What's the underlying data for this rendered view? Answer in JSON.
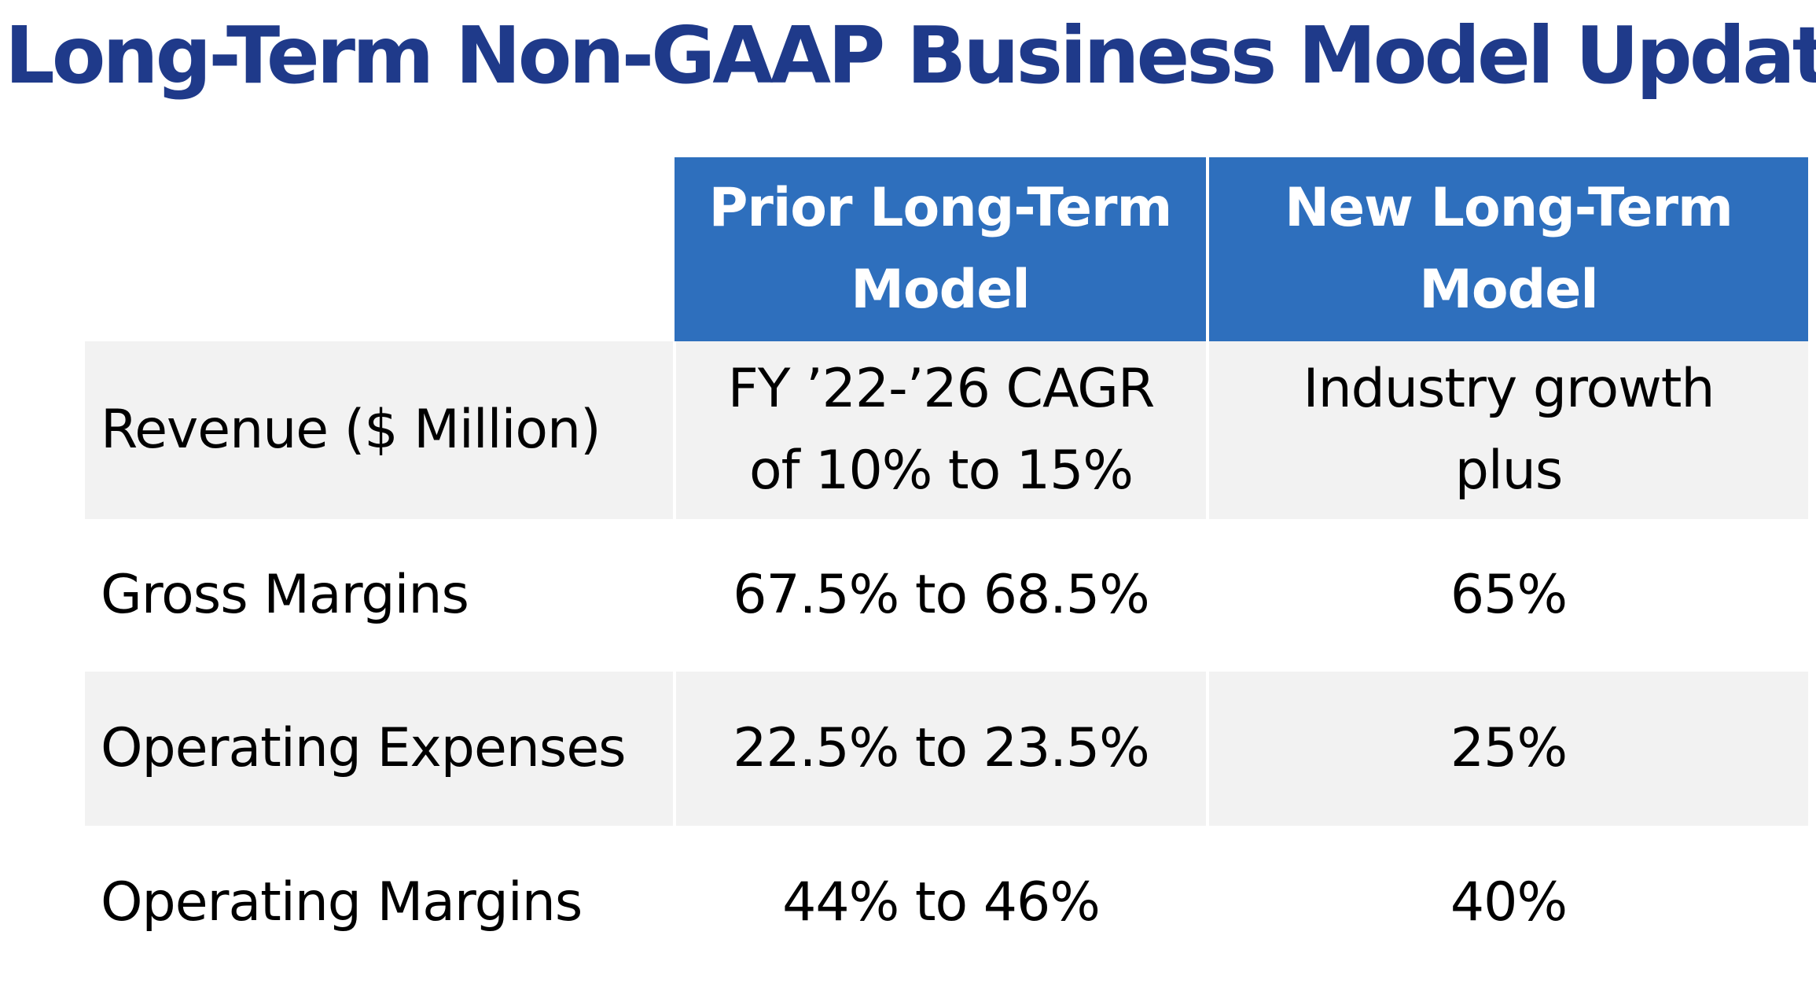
{
  "slide": {
    "title": "Long-Term Non-GAAP Business Model Update"
  },
  "table": {
    "headers": {
      "prior": "Prior Long-Term\nModel",
      "new": "New Long-Term\nModel"
    },
    "rows": [
      {
        "label": "Revenue ($ Million)",
        "prior": "FY ’22-’26 CAGR\nof 10% to 15%",
        "new": "Industry growth\nplus"
      },
      {
        "label": "Gross Margins",
        "prior": "67.5% to 68.5%",
        "new": "65%"
      },
      {
        "label": "Operating Expenses",
        "prior": "22.5% to 23.5%",
        "new": "25%"
      },
      {
        "label": "Operating Margins",
        "prior": "44% to 46%",
        "new": "40%"
      }
    ]
  },
  "colors": {
    "title": "#1f3a8a",
    "header_fill": "#2e6fbd",
    "header_text": "#ffffff",
    "row_shade": "#f2f2f2"
  }
}
